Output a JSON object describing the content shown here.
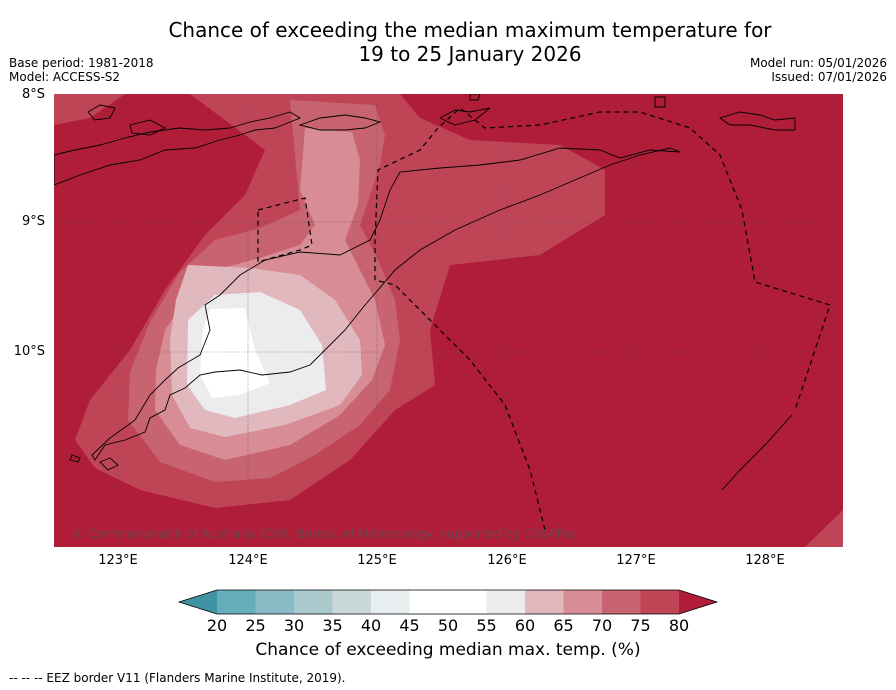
{
  "title_line1": "Chance of exceeding the median maximum temperature for",
  "title_line2": "19 to 25 January 2026",
  "base_period": "Base period: 1981-2018",
  "model": "Model: ACCESS-S2",
  "model_run": "Model run: 05/01/2026",
  "issued": "Issued: 07/01/2026",
  "lat_labels": [
    "8°S",
    "9°S",
    "10°S"
  ],
  "lon_labels": [
    "123°E",
    "124°E",
    "125°E",
    "126°E",
    "127°E",
    "128°E"
  ],
  "copyright": "© Commonwealth of Australia 2026, Bureau of Meteorology, supported by COSPPac",
  "colorbar": {
    "ticks": [
      "20",
      "25",
      "30",
      "35",
      "40",
      "45",
      "50",
      "55",
      "60",
      "65",
      "70",
      "75",
      "80"
    ],
    "colors": [
      "#3f93a3",
      "#67aebb",
      "#89bcc6",
      "#a9c9cd",
      "#cbd8d9",
      "#e8eef0",
      "#ffffff",
      "#ffffff",
      "#ececee",
      "#e0b8be",
      "#d88d96",
      "#c8646f",
      "#bf4556",
      "#b01d39"
    ],
    "title": "Chance of exceeding median max. temp. (%)"
  },
  "footer": "--  --  -- EEZ border V11 (Flanders Marine Institute, 2019).",
  "legend_colors": {
    "c80": "#b01d39",
    "c75": "#bf4556",
    "c70": "#c8646f",
    "c65": "#d88d96",
    "c60": "#e0b8be",
    "c55": "#ececee",
    "c50": "#ffffff"
  }
}
